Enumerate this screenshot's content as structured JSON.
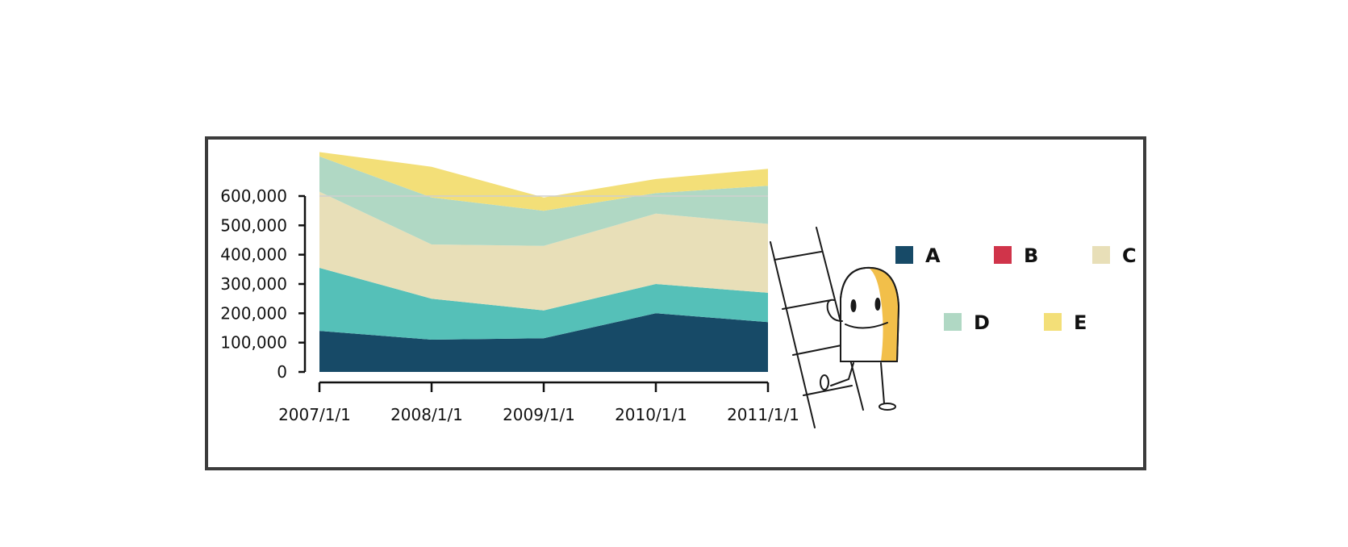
{
  "chart_data": {
    "type": "area",
    "stacked": true,
    "categories": [
      "2007/1/1",
      "2008/1/1",
      "2009/1/1",
      "2010/1/1",
      "2011/1/1"
    ],
    "series": [
      {
        "name": "A",
        "color": "#174a67",
        "values": [
          140000,
          110000,
          115000,
          200000,
          170000
        ]
      },
      {
        "name": "B",
        "color": "#d0344a",
        "values": [
          0,
          0,
          0,
          0,
          0
        ]
      },
      {
        "name": "C",
        "color": "#e8dfb8",
        "values": [
          260000,
          185000,
          220000,
          240000,
          235000
        ]
      },
      {
        "name": "D",
        "color": "#b0d8c4",
        "values": [
          120000,
          160000,
          120000,
          70000,
          130000
        ]
      },
      {
        "name": "E",
        "color": "#f3df78",
        "values": [
          15000,
          105000,
          45000,
          48000,
          58000
        ]
      }
    ],
    "teal_band": {
      "color": "#55c0b8",
      "values": [
        215000,
        140000,
        95000,
        100000,
        100000
      ]
    },
    "ylim": [
      0,
      600000
    ],
    "yticks": [
      "0",
      "100,000",
      "200,000",
      "300,000",
      "400,000",
      "500,000",
      "600,000"
    ],
    "ytick_values": [
      0,
      100000,
      200000,
      300000,
      400000,
      500000,
      600000
    ],
    "grid": "top line only",
    "legend_position": "right",
    "title": "",
    "xlabel": "",
    "ylabel": ""
  },
  "illustration": {
    "name": "character-climbing-ladder",
    "accent_color": "#f2bf4a"
  }
}
